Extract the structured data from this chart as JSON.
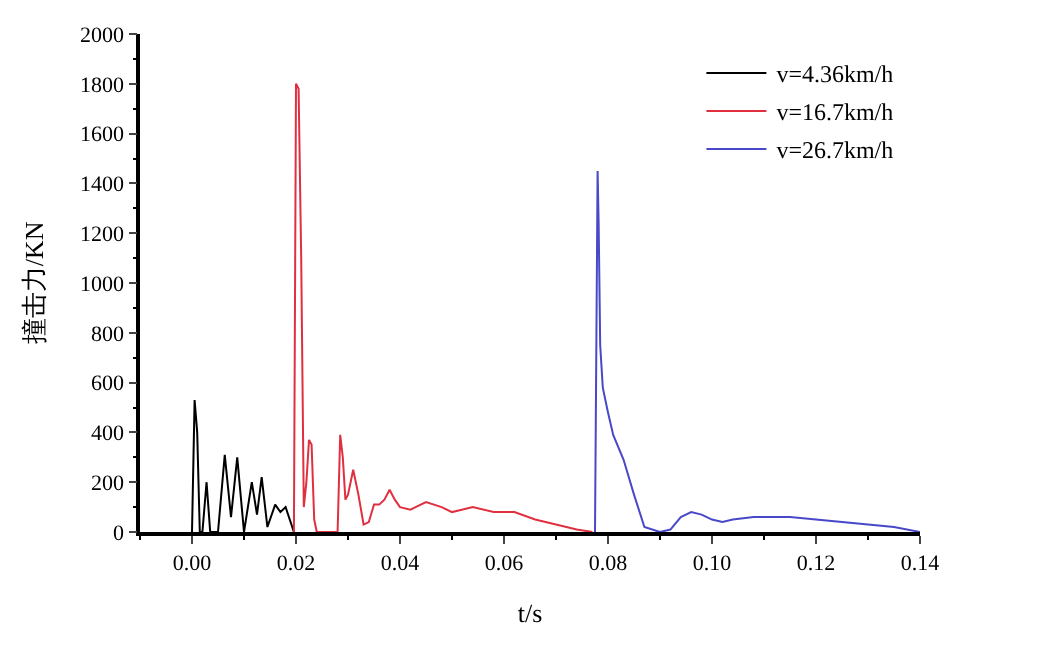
{
  "chart_data": {
    "type": "line",
    "xlabel": "t/s",
    "ylabel": "撞击力/KN",
    "xlim": [
      -0.01,
      0.14
    ],
    "ylim": [
      0,
      2000
    ],
    "xticks": [
      {
        "value": 0,
        "label": "0.00"
      },
      {
        "value": 0.02,
        "label": "0.02"
      },
      {
        "value": 0.04,
        "label": "0.04"
      },
      {
        "value": 0.06,
        "label": "0.06"
      },
      {
        "value": 0.08,
        "label": "0.08"
      },
      {
        "value": 0.1,
        "label": "0.10"
      },
      {
        "value": 0.12,
        "label": "0.12"
      },
      {
        "value": 0.14,
        "label": "0.14"
      }
    ],
    "yticks": [
      0,
      200,
      400,
      600,
      800,
      1000,
      1200,
      1400,
      1600,
      1800,
      2000
    ],
    "legend": "top right",
    "marker": "none",
    "line_style": "solid",
    "series": [
      {
        "name": "v=4.36km/h",
        "color": "#000000",
        "x": [
          0,
          0.0005,
          0.001,
          0.0015,
          0.002,
          0.0028,
          0.0035,
          0.005,
          0.0063,
          0.0075,
          0.0087,
          0.01,
          0.0115,
          0.0125,
          0.0134,
          0.0145,
          0.016,
          0.017,
          0.018,
          0.0196
        ],
        "values": [
          0,
          530,
          400,
          0,
          0,
          200,
          0,
          0,
          310,
          60,
          300,
          0,
          200,
          70,
          220,
          20,
          110,
          80,
          100,
          0
        ]
      },
      {
        "name": "v=16.7km/h",
        "color": "#e03040",
        "x": [
          0.0196,
          0.02,
          0.0205,
          0.021,
          0.0215,
          0.022,
          0.0225,
          0.023,
          0.0235,
          0.024,
          0.028,
          0.0285,
          0.029,
          0.0295,
          0.03,
          0.031,
          0.032,
          0.033,
          0.034,
          0.035,
          0.036,
          0.037,
          0.038,
          0.039,
          0.04,
          0.042,
          0.045,
          0.048,
          0.05,
          0.054,
          0.058,
          0.062,
          0.066,
          0.07,
          0.074,
          0.077
        ],
        "values": [
          0,
          1800,
          1780,
          1100,
          100,
          200,
          370,
          350,
          50,
          0,
          0,
          390,
          300,
          130,
          150,
          250,
          150,
          30,
          40,
          110,
          110,
          130,
          170,
          130,
          100,
          90,
          120,
          100,
          80,
          100,
          80,
          80,
          50,
          30,
          10,
          0
        ]
      },
      {
        "name": "v=26.7km/h",
        "color": "#4848c8",
        "x": [
          0.0775,
          0.078,
          0.0782,
          0.0785,
          0.079,
          0.08,
          0.081,
          0.083,
          0.085,
          0.087,
          0.09,
          0.092,
          0.094,
          0.096,
          0.098,
          0.1,
          0.102,
          0.104,
          0.108,
          0.115,
          0.12,
          0.125,
          0.13,
          0.135,
          0.14
        ],
        "values": [
          0,
          1450,
          1240,
          750,
          580,
          480,
          390,
          290,
          150,
          20,
          0,
          10,
          60,
          80,
          70,
          50,
          40,
          50,
          60,
          60,
          50,
          40,
          30,
          20,
          0
        ]
      }
    ]
  }
}
